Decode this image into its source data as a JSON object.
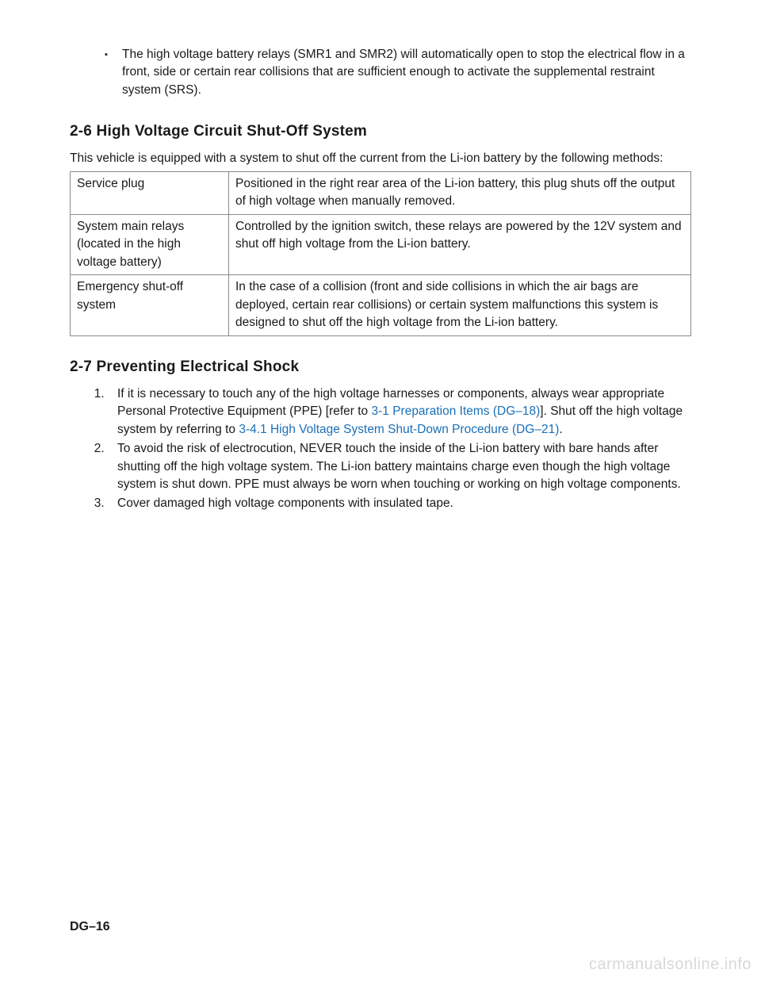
{
  "top_bullet": {
    "marker": "▪",
    "text": "The high voltage battery relays (SMR1 and SMR2) will automatically open to stop the electrical flow in a front, side or certain rear collisions that are sufficient enough to activate the supplemental restraint system (SRS)."
  },
  "section_26": {
    "heading": "2-6  High Voltage Circuit Shut-Off System",
    "intro": "This vehicle is equipped with a system to shut off the current from the Li-ion battery by the following methods:",
    "table": {
      "rows": [
        {
          "name": "Service plug",
          "desc": "Positioned in the right rear area of the Li-ion battery, this plug shuts off the output of high voltage when manually removed."
        },
        {
          "name": "System main relays (located in the high voltage battery)",
          "desc": "Controlled by the ignition switch, these relays are powered by the 12V system and shut off high voltage from the Li-ion battery."
        },
        {
          "name": "Emergency shut-off system",
          "desc": "In the case of a collision (front and side collisions in which the air bags are deployed, certain rear collisions) or certain system malfunctions this system is designed to shut off the high voltage from the Li-ion battery."
        }
      ]
    }
  },
  "section_27": {
    "heading": "2-7  Preventing Electrical Shock",
    "items": {
      "i1_pre": "If it is necessary to touch any of the high voltage harnesses or components, always wear appropriate Personal Protective Equipment (PPE) [refer to ",
      "i1_link1": "3-1 Preparation Items (DG–18)",
      "i1_mid": "]. Shut off the high voltage system by referring to ",
      "i1_link2": "3-4.1 High Voltage System Shut-Down Procedure (DG–21)",
      "i1_post": ".",
      "i2": "To avoid the risk of electrocution, NEVER touch the inside of the Li-ion battery with bare hands after shutting off the high voltage system. The Li-ion battery maintains charge even though the high voltage system is shut down. PPE must always be worn when touching or working on high voltage components.",
      "i3": "Cover damaged high voltage components with insulated tape."
    }
  },
  "footer": "DG–16",
  "watermark": "carmanualsonline.info",
  "colors": {
    "text": "#1a1a1a",
    "link": "#1a6fb8",
    "border": "#8a8a8a",
    "watermark": "#d8d8d8",
    "background": "#ffffff"
  }
}
